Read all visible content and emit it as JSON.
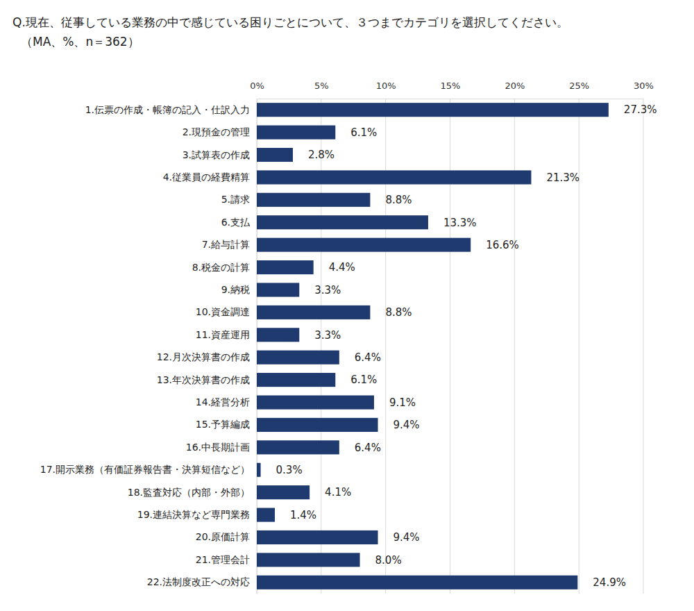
{
  "chart_data": {
    "type": "bar",
    "orientation": "horizontal",
    "title": "Q.現在、従事している業務の中で感じている困りごとについて、３つまでカテゴリを選択してください。",
    "subtitle": "（MA、%、n＝362）",
    "categories": [
      "1.伝票の作成・帳簿の記入・仕訳入力",
      "2.現預金の管理",
      "3.試算表の作成",
      "4.従業員の経費精算",
      "5.請求",
      "6.支払",
      "7.給与計算",
      "8.税金の計算",
      "9.納税",
      "10.資金調達",
      "11.資産運用",
      "12.月次決算書の作成",
      "13.年次決算書の作成",
      "14.経営分析",
      "15.予算編成",
      "16.中長期計画",
      "17.開示業務（有価証券報告書・決算短信など）",
      "18.監査対応（内部・外部）",
      "19.連結決算など専門業務",
      "20.原価計算",
      "21.管理会計",
      "22.法制度改正への対応"
    ],
    "values": [
      27.3,
      6.1,
      2.8,
      21.3,
      8.8,
      13.3,
      16.6,
      4.4,
      3.3,
      8.8,
      3.3,
      6.4,
      6.1,
      9.1,
      9.4,
      6.4,
      0.3,
      4.1,
      1.4,
      9.4,
      8.0,
      24.9
    ],
    "value_labels": [
      "27.3%",
      "6.1%",
      "2.8%",
      "21.3%",
      "8.8%",
      "13.3%",
      "16.6%",
      "4.4%",
      "3.3%",
      "8.8%",
      "3.3%",
      "6.4%",
      "6.1%",
      "9.1%",
      "9.4%",
      "6.4%",
      "0.3%",
      "4.1%",
      "1.4%",
      "9.4%",
      "8.0%",
      "24.9%"
    ],
    "data_labels": true,
    "color": "#1f3a6e",
    "xlim": [
      0,
      30
    ],
    "xticks": [
      {
        "value": 0,
        "label": "0%"
      },
      {
        "value": 5,
        "label": "5%"
      },
      {
        "value": 10,
        "label": "10%"
      },
      {
        "value": 15,
        "label": "15%"
      },
      {
        "value": 20,
        "label": "20%"
      },
      {
        "value": 25,
        "label": "25%"
      },
      {
        "value": 30,
        "label": "30%"
      }
    ],
    "grid": true
  }
}
